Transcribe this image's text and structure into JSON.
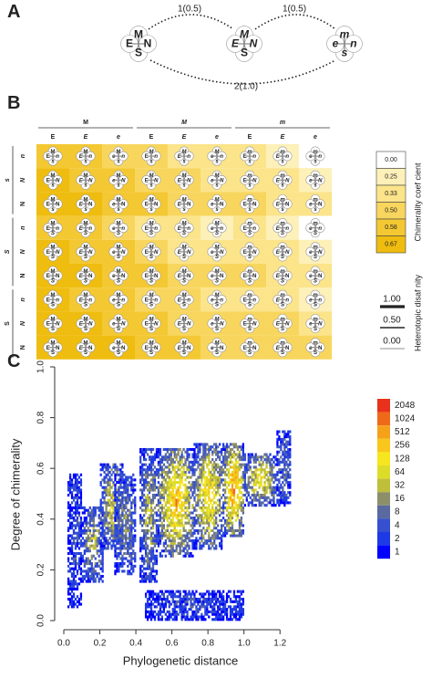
{
  "panels": {
    "a": "A",
    "b": "B",
    "c": "C"
  },
  "panel_a": {
    "nodes": [
      {
        "top": "M",
        "left": "E",
        "right": "N",
        "bottom": "S",
        "italic": []
      },
      {
        "top": "M",
        "left": "E",
        "right": "N",
        "bottom": "S",
        "italic": [
          "top",
          "left",
          "right"
        ]
      },
      {
        "top": "m",
        "left": "e",
        "right": "n",
        "bottom": "s",
        "italic": [
          "top",
          "left",
          "right",
          "bottom"
        ]
      }
    ],
    "edges": [
      "1(0.5)",
      "1(0.5)",
      "2(1.0)"
    ]
  },
  "panel_b": {
    "top_groups": [
      "M",
      "M",
      "m"
    ],
    "top_group_italic": [
      false,
      true,
      true
    ],
    "col_labels": [
      "E",
      "E",
      "e",
      "E",
      "E",
      "e",
      "E",
      "E",
      "e"
    ],
    "col_italic": [
      false,
      true,
      true,
      false,
      true,
      true,
      false,
      true,
      true
    ],
    "side_groups": [
      "s",
      "S",
      "S"
    ],
    "side_group_italic": [
      true,
      true,
      false
    ],
    "row_labels": [
      "n",
      "N",
      "N",
      "n",
      "N",
      "N",
      "n",
      "N",
      "N"
    ],
    "row_italic": [
      true,
      true,
      false,
      true,
      true,
      false,
      true,
      true,
      false
    ],
    "cell_levels": [
      [
        4,
        4,
        3,
        3,
        2,
        2,
        2,
        1,
        0
      ],
      [
        5,
        4,
        4,
        3,
        3,
        2,
        2,
        2,
        1
      ],
      [
        5,
        5,
        4,
        4,
        3,
        3,
        3,
        2,
        2
      ],
      [
        4,
        4,
        3,
        2,
        2,
        1,
        2,
        1,
        0
      ],
      [
        5,
        4,
        4,
        3,
        2,
        2,
        2,
        2,
        1
      ],
      [
        5,
        5,
        4,
        4,
        3,
        3,
        3,
        2,
        2
      ],
      [
        5,
        4,
        4,
        3,
        3,
        2,
        2,
        2,
        1
      ],
      [
        5,
        5,
        4,
        4,
        3,
        3,
        3,
        3,
        2
      ],
      [
        5,
        5,
        5,
        4,
        4,
        3,
        3,
        3,
        3
      ]
    ],
    "chimerality_legend": {
      "title": "Chimerality coef cient",
      "values": [
        "0.00",
        "0.25",
        "0.33",
        "0.50",
        "0.58",
        "0.67"
      ],
      "colors": [
        "#ffffff",
        "#fdf0b8",
        "#fbe48a",
        "#f8d65e",
        "#f3c833",
        "#efbd10"
      ]
    },
    "heterotopic_legend": {
      "title": "Heterotopic disaf nity",
      "values": [
        "1.00",
        "0.50",
        "0.00"
      ]
    }
  },
  "chart_data": {
    "type": "heatmap",
    "xlabel": "Phylogenetic distance",
    "ylabel": "Degree of chimerality",
    "xlim": [
      0,
      1.3
    ],
    "ylim": [
      0,
      1
    ],
    "xticks": [
      "0.0",
      "0.2",
      "0.4",
      "0.6",
      "0.8",
      "1.0",
      "1.2"
    ],
    "yticks": [
      "0.0",
      "0.2",
      "0.4",
      "0.6",
      "0.8",
      "1.0"
    ],
    "colorbar": {
      "labels": [
        "2048",
        "1024",
        "512",
        "256",
        "128",
        "64",
        "32",
        "16",
        "8",
        "4",
        "2",
        "1"
      ],
      "colors": [
        "#e8321c",
        "#ee6a1a",
        "#f5a21a",
        "#f8c61c",
        "#f7e51f",
        "#dedc2a",
        "#bfbf3c",
        "#8d8f6b",
        "#5a6aa0",
        "#3650d0",
        "#1e3ae6",
        "#0000ff"
      ]
    },
    "clusters": [
      {
        "x": [
          0.02,
          0.1
        ],
        "y": [
          0.05,
          0.58
        ],
        "count": 4
      },
      {
        "x": [
          0.1,
          0.22
        ],
        "y": [
          0.15,
          0.45
        ],
        "count": 32
      },
      {
        "x": [
          0.2,
          0.33
        ],
        "y": [
          0.28,
          0.62
        ],
        "count": 64
      },
      {
        "x": [
          0.28,
          0.4
        ],
        "y": [
          0.18,
          0.58
        ],
        "count": 16
      },
      {
        "x": [
          0.42,
          0.52
        ],
        "y": [
          0.15,
          0.68
        ],
        "count": 32
      },
      {
        "x": [
          0.52,
          0.72
        ],
        "y": [
          0.25,
          0.68
        ],
        "count": 512
      },
      {
        "x": [
          0.72,
          0.88
        ],
        "y": [
          0.28,
          0.7
        ],
        "count": 256
      },
      {
        "x": [
          0.88,
          1.0
        ],
        "y": [
          0.33,
          0.7
        ],
        "count": 1024
      },
      {
        "x": [
          1.0,
          1.18
        ],
        "y": [
          0.45,
          0.66
        ],
        "count": 128
      },
      {
        "x": [
          1.18,
          1.26
        ],
        "y": [
          0.45,
          0.75
        ],
        "count": 8
      },
      {
        "x": [
          0.45,
          1.0
        ],
        "y": [
          0.0,
          0.12
        ],
        "count": 4
      }
    ]
  }
}
